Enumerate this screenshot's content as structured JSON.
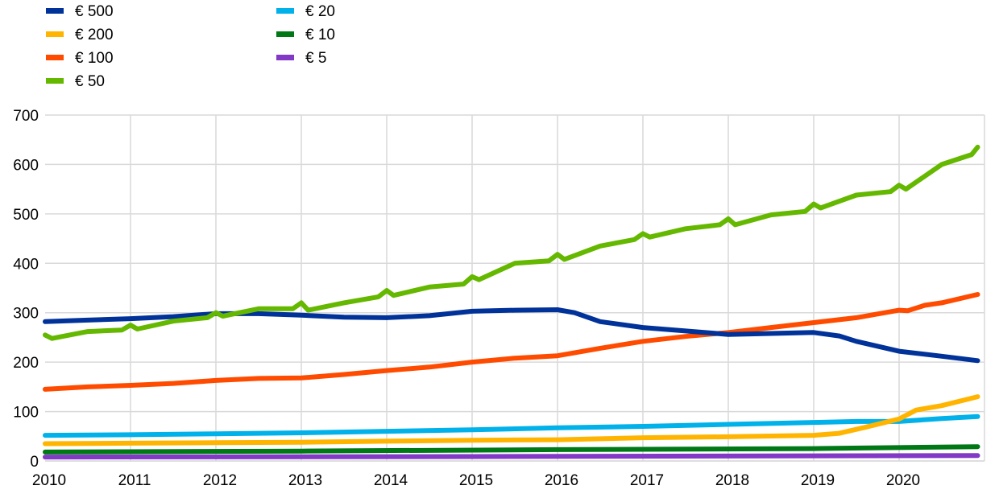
{
  "chart_data": {
    "type": "line",
    "title": "",
    "xlabel": "",
    "ylabel": "",
    "xlim": [
      2010,
      2021
    ],
    "ylim": [
      0,
      700
    ],
    "yticks": [
      0,
      100,
      200,
      300,
      400,
      500,
      600,
      700
    ],
    "xticks": [
      "2010",
      "2011",
      "2012",
      "2013",
      "2014",
      "2015",
      "2016",
      "2017",
      "2018",
      "2019",
      "2020"
    ],
    "grid": true,
    "legend_position": "top-left",
    "series": [
      {
        "name": "€ 500",
        "color": "#003299",
        "points": [
          [
            2010,
            282
          ],
          [
            2010.5,
            285
          ],
          [
            2011,
            288
          ],
          [
            2011.5,
            292
          ],
          [
            2012,
            298
          ],
          [
            2012.5,
            298
          ],
          [
            2013,
            295
          ],
          [
            2013.5,
            291
          ],
          [
            2014,
            290
          ],
          [
            2014.5,
            294
          ],
          [
            2015,
            303
          ],
          [
            2015.5,
            305
          ],
          [
            2016,
            306
          ],
          [
            2016.2,
            300
          ],
          [
            2016.5,
            282
          ],
          [
            2017,
            270
          ],
          [
            2017.5,
            263
          ],
          [
            2018,
            256
          ],
          [
            2018.5,
            258
          ],
          [
            2019,
            260
          ],
          [
            2019.3,
            253
          ],
          [
            2019.5,
            242
          ],
          [
            2020,
            222
          ],
          [
            2020.5,
            212
          ],
          [
            2020.92,
            203
          ]
        ]
      },
      {
        "name": "€ 200",
        "color": "#FFB400",
        "points": [
          [
            2010,
            35
          ],
          [
            2011,
            36
          ],
          [
            2012,
            37
          ],
          [
            2013,
            38
          ],
          [
            2014,
            40
          ],
          [
            2015,
            42
          ],
          [
            2016,
            43
          ],
          [
            2016.5,
            45
          ],
          [
            2017,
            47
          ],
          [
            2018,
            49
          ],
          [
            2019,
            52
          ],
          [
            2019.3,
            56
          ],
          [
            2019.6,
            68
          ],
          [
            2020,
            85
          ],
          [
            2020.2,
            103
          ],
          [
            2020.5,
            112
          ],
          [
            2020.92,
            130
          ]
        ]
      },
      {
        "name": "€ 100",
        "color": "#FF4B00",
        "points": [
          [
            2010,
            145
          ],
          [
            2010.5,
            150
          ],
          [
            2011,
            153
          ],
          [
            2011.5,
            157
          ],
          [
            2012,
            163
          ],
          [
            2012.5,
            167
          ],
          [
            2013,
            168
          ],
          [
            2013.5,
            175
          ],
          [
            2014,
            183
          ],
          [
            2014.5,
            190
          ],
          [
            2015,
            200
          ],
          [
            2015.5,
            208
          ],
          [
            2016,
            213
          ],
          [
            2016.5,
            228
          ],
          [
            2017,
            242
          ],
          [
            2017.5,
            252
          ],
          [
            2018,
            260
          ],
          [
            2018.5,
            270
          ],
          [
            2019,
            280
          ],
          [
            2019.5,
            290
          ],
          [
            2020,
            305
          ],
          [
            2020.1,
            304
          ],
          [
            2020.3,
            315
          ],
          [
            2020.5,
            320
          ],
          [
            2020.92,
            337
          ]
        ]
      },
      {
        "name": "€ 50",
        "color": "#65B800",
        "points": [
          [
            2010,
            255
          ],
          [
            2010.08,
            248
          ],
          [
            2010.5,
            262
          ],
          [
            2010.9,
            265
          ],
          [
            2011,
            275
          ],
          [
            2011.08,
            267
          ],
          [
            2011.5,
            283
          ],
          [
            2011.9,
            290
          ],
          [
            2012,
            300
          ],
          [
            2012.08,
            293
          ],
          [
            2012.5,
            308
          ],
          [
            2012.9,
            308
          ],
          [
            2013,
            320
          ],
          [
            2013.08,
            305
          ],
          [
            2013.5,
            320
          ],
          [
            2013.9,
            332
          ],
          [
            2014,
            345
          ],
          [
            2014.08,
            335
          ],
          [
            2014.5,
            352
          ],
          [
            2014.9,
            358
          ],
          [
            2015,
            373
          ],
          [
            2015.08,
            367
          ],
          [
            2015.5,
            400
          ],
          [
            2015.9,
            405
          ],
          [
            2016,
            418
          ],
          [
            2016.08,
            408
          ],
          [
            2016.5,
            435
          ],
          [
            2016.9,
            448
          ],
          [
            2017,
            460
          ],
          [
            2017.08,
            453
          ],
          [
            2017.5,
            470
          ],
          [
            2017.9,
            478
          ],
          [
            2018,
            490
          ],
          [
            2018.08,
            478
          ],
          [
            2018.5,
            498
          ],
          [
            2018.9,
            505
          ],
          [
            2019,
            520
          ],
          [
            2019.08,
            512
          ],
          [
            2019.5,
            538
          ],
          [
            2019.9,
            545
          ],
          [
            2020,
            558
          ],
          [
            2020.08,
            550
          ],
          [
            2020.5,
            600
          ],
          [
            2020.85,
            620
          ],
          [
            2020.92,
            635
          ]
        ]
      },
      {
        "name": "€ 20",
        "color": "#00B1EA",
        "points": [
          [
            2010,
            52
          ],
          [
            2011,
            53
          ],
          [
            2012,
            55
          ],
          [
            2013,
            57
          ],
          [
            2014,
            60
          ],
          [
            2015,
            63
          ],
          [
            2016,
            67
          ],
          [
            2017,
            70
          ],
          [
            2018,
            74
          ],
          [
            2019,
            78
          ],
          [
            2019.5,
            80
          ],
          [
            2020,
            80
          ],
          [
            2020.5,
            86
          ],
          [
            2020.92,
            90
          ]
        ]
      },
      {
        "name": "€ 10",
        "color": "#007816",
        "points": [
          [
            2010,
            18
          ],
          [
            2013,
            20
          ],
          [
            2016,
            23
          ],
          [
            2019,
            25
          ],
          [
            2020.92,
            29
          ]
        ]
      },
      {
        "name": "€ 5",
        "color": "#8139C6",
        "points": [
          [
            2010,
            8
          ],
          [
            2015,
            9
          ],
          [
            2020.92,
            11
          ]
        ]
      }
    ]
  }
}
